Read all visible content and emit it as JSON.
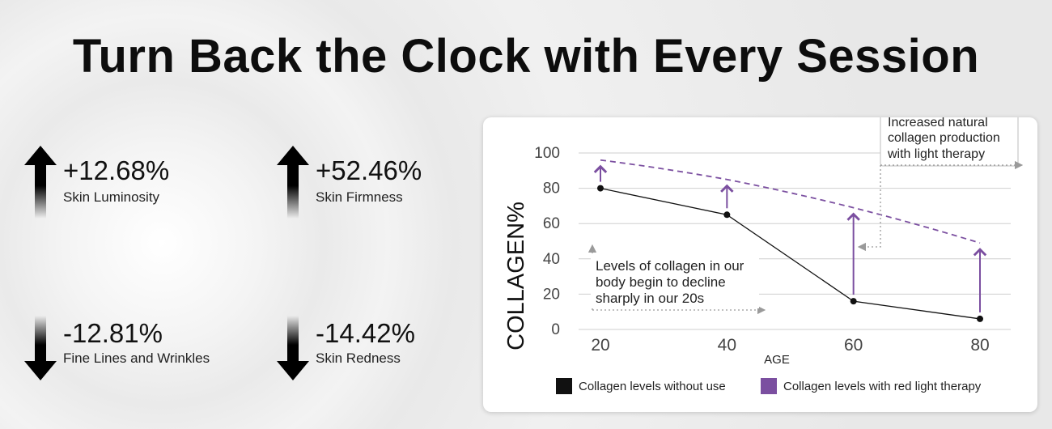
{
  "page": {
    "title": "Turn Back the Clock with Every Session"
  },
  "stats": [
    {
      "value": "+12.68%",
      "label": "Skin Luminosity",
      "direction": "up"
    },
    {
      "value": "+52.46%",
      "label": "Skin Firmness",
      "direction": "up"
    },
    {
      "value": "-12.81%",
      "label": "Fine Lines and Wrinkles",
      "direction": "down"
    },
    {
      "value": "-14.42%",
      "label": "Skin Redness",
      "direction": "down"
    }
  ],
  "chart_data": {
    "type": "line",
    "xlabel": "AGE",
    "ylabel": "COLLAGEN%",
    "x": [
      20,
      40,
      60,
      80
    ],
    "xlim": [
      20,
      80
    ],
    "ylim": [
      0,
      100
    ],
    "y_ticks": [
      0,
      20,
      40,
      60,
      80,
      100
    ],
    "grid": true,
    "legend_position": "bottom",
    "series": [
      {
        "name": "Collagen levels without use",
        "values": [
          80,
          65,
          16,
          6
        ],
        "color": "#111111",
        "style": "solid"
      },
      {
        "name": "Collagen levels with red light therapy",
        "values": [
          96,
          85,
          69,
          49
        ],
        "color": "#7b4fa0",
        "style": "dashed"
      }
    ],
    "annotations": [
      {
        "text_lines": [
          "Increased natural",
          "collagen production",
          "with light therapy"
        ]
      },
      {
        "text_lines": [
          "Levels of collagen in our",
          "body begin to decline",
          "sharply in our 20s"
        ]
      }
    ]
  },
  "colors": {
    "purple": "#7b4fa0",
    "black": "#111111",
    "grid": "#cccccc"
  }
}
